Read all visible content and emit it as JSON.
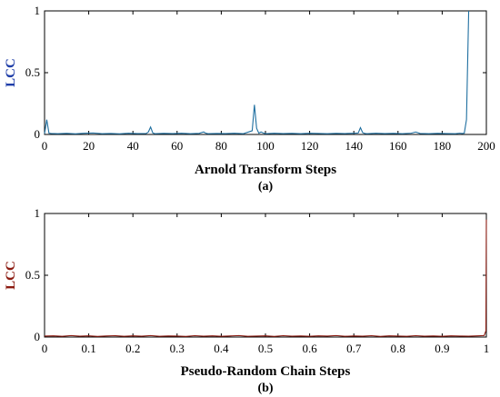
{
  "chart_data": [
    {
      "type": "line",
      "panel_caption": "(a)",
      "xlabel": "Arnold Transform Steps",
      "ylabel": "LCC",
      "ylabel_color": "#1f3ea8",
      "line_color": "#1f6fa0",
      "xlim": [
        0,
        200
      ],
      "ylim": [
        0,
        1
      ],
      "xticks": [
        0,
        20,
        40,
        60,
        80,
        100,
        120,
        140,
        160,
        180,
        200
      ],
      "xtick_labels": [
        "0",
        "20",
        "40",
        "60",
        "80",
        "100",
        "120",
        "140",
        "160",
        "180",
        "200"
      ],
      "yticks": [
        0,
        0.5,
        1
      ],
      "ytick_labels": [
        "0",
        "0.5",
        "1"
      ],
      "grid": false,
      "series": [
        {
          "x": [
            0,
            1,
            2,
            3,
            6,
            10,
            14,
            18,
            22,
            26,
            30,
            34,
            38,
            42,
            46,
            47,
            48,
            49,
            50,
            54,
            58,
            62,
            66,
            70,
            72,
            73,
            74,
            78,
            82,
            86,
            90,
            94,
            95,
            96,
            97,
            98,
            99,
            100,
            104,
            108,
            112,
            116,
            120,
            124,
            128,
            132,
            136,
            140,
            142,
            143,
            144,
            145,
            146,
            150,
            154,
            158,
            162,
            166,
            168,
            170,
            174,
            178,
            182,
            186,
            188,
            189,
            190,
            191,
            192
          ],
          "y": [
            0.005,
            0.12,
            0.01,
            0.008,
            0.006,
            0.009,
            0.005,
            0.01,
            0.012,
            0.006,
            0.008,
            0.005,
            0.01,
            0.007,
            0.008,
            0.02,
            0.06,
            0.012,
            0.006,
            0.009,
            0.007,
            0.01,
            0.006,
            0.009,
            0.02,
            0.01,
            0.006,
            0.008,
            0.007,
            0.01,
            0.006,
            0.03,
            0.24,
            0.05,
            0.01,
            0.02,
            0.012,
            0.006,
            0.01,
            0.007,
            0.009,
            0.006,
            0.01,
            0.008,
            0.006,
            0.009,
            0.007,
            0.01,
            0.012,
            0.055,
            0.015,
            0.008,
            0.006,
            0.01,
            0.007,
            0.009,
            0.006,
            0.01,
            0.02,
            0.008,
            0.006,
            0.009,
            0.007,
            0.006,
            0.01,
            0.008,
            0.01,
            0.12,
            1.0
          ]
        }
      ]
    },
    {
      "type": "line",
      "panel_caption": "(b)",
      "xlabel": "Pseudo-Random Chain Steps",
      "ylabel": "LCC",
      "ylabel_color": "#8b1a10",
      "line_color": "#8b1a10",
      "xlim": [
        0,
        1
      ],
      "ylim": [
        0,
        1
      ],
      "xticks": [
        0,
        0.1,
        0.2,
        0.3,
        0.4,
        0.5,
        0.6,
        0.7,
        0.8,
        0.9,
        1
      ],
      "xtick_labels": [
        "0",
        "0.1",
        "0.2",
        "0.3",
        "0.4",
        "0.5",
        "0.6",
        "0.7",
        "0.8",
        "0.9",
        "1"
      ],
      "yticks": [
        0,
        0.5,
        1
      ],
      "ytick_labels": [
        "0",
        "0.5",
        "1"
      ],
      "grid": false,
      "series": [
        {
          "x": [
            0,
            0.02,
            0.04,
            0.06,
            0.08,
            0.1,
            0.12,
            0.14,
            0.16,
            0.18,
            0.2,
            0.22,
            0.24,
            0.26,
            0.28,
            0.3,
            0.32,
            0.34,
            0.36,
            0.38,
            0.4,
            0.42,
            0.44,
            0.46,
            0.48,
            0.5,
            0.52,
            0.54,
            0.56,
            0.58,
            0.6,
            0.62,
            0.64,
            0.66,
            0.68,
            0.7,
            0.72,
            0.74,
            0.76,
            0.78,
            0.8,
            0.82,
            0.84,
            0.86,
            0.88,
            0.9,
            0.92,
            0.94,
            0.96,
            0.98,
            0.995,
            0.999,
            1.0
          ],
          "y": [
            0.008,
            0.01,
            0.006,
            0.012,
            0.007,
            0.01,
            0.005,
            0.009,
            0.011,
            0.006,
            0.01,
            0.007,
            0.012,
            0.006,
            0.009,
            0.008,
            0.005,
            0.011,
            0.007,
            0.01,
            0.006,
            0.009,
            0.012,
            0.006,
            0.008,
            0.01,
            0.005,
            0.011,
            0.007,
            0.009,
            0.006,
            0.01,
            0.008,
            0.012,
            0.006,
            0.009,
            0.007,
            0.011,
            0.005,
            0.01,
            0.008,
            0.006,
            0.011,
            0.007,
            0.009,
            0.006,
            0.01,
            0.008,
            0.007,
            0.01,
            0.012,
            0.05,
            0.95
          ]
        }
      ]
    }
  ]
}
